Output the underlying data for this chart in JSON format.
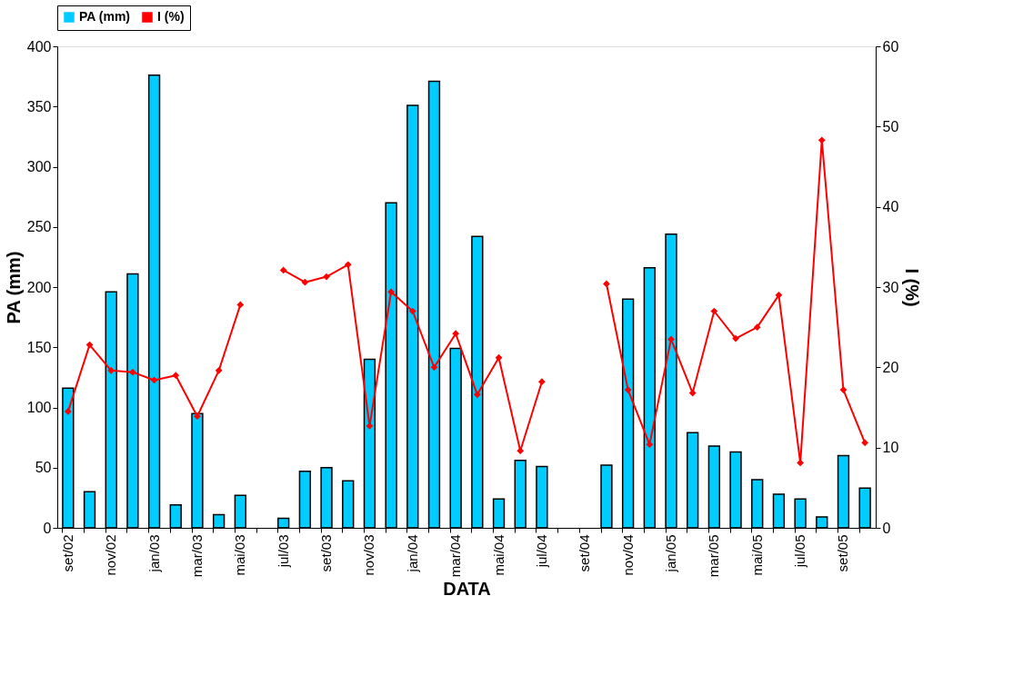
{
  "chart_data": {
    "type": "bar",
    "categories": [
      "set/02",
      null,
      "nov/02",
      null,
      "jan/03",
      null,
      "mar/03",
      null,
      "mai/03",
      null,
      "jul/03",
      null,
      "set/03",
      null,
      "nov/03",
      null,
      "jan/04",
      null,
      "mar/04",
      null,
      "mai/04",
      null,
      "jul/04",
      null,
      "set/04",
      null,
      "nov/04",
      null,
      "jan/05",
      null,
      "mar/05",
      null,
      "mai/05",
      null,
      "jul/05",
      null,
      "set/05",
      null
    ],
    "series": [
      {
        "name": "PA (mm)",
        "color": "#00ccff",
        "values": [
          116,
          30,
          196,
          211,
          376,
          19,
          95,
          11,
          27,
          null,
          8,
          47,
          50,
          39,
          140,
          270,
          351,
          371,
          149,
          242,
          24,
          56,
          51,
          null,
          null,
          52,
          190,
          216,
          244,
          79,
          68,
          63,
          40,
          28,
          24,
          9,
          60,
          33
        ]
      },
      {
        "name": "I (%)",
        "type": "line",
        "axis": "y2",
        "marker": "diamond",
        "color": "#ff0000",
        "values": [
          14.5,
          22.8,
          19.6,
          19.4,
          18.4,
          19.0,
          13.9,
          19.6,
          27.8,
          null,
          32.1,
          30.6,
          31.3,
          32.8,
          12.7,
          29.4,
          27.0,
          20.0,
          24.2,
          16.6,
          21.2,
          9.6,
          18.2,
          null,
          null,
          30.4,
          17.2,
          10.4,
          23.5,
          16.8,
          27.0,
          23.6,
          25.0,
          29.0,
          8.1,
          48.3,
          17.2,
          10.6
        ]
      }
    ],
    "xlabel": "DATA",
    "ylabel": "PA (mm)",
    "y2label": "I (%)",
    "ylim": [
      0,
      400
    ],
    "yticks": [
      0,
      50,
      100,
      150,
      200,
      250,
      300,
      350,
      400
    ],
    "y2lim": [
      0,
      60
    ],
    "y2ticks": [
      0,
      10,
      20,
      30,
      40,
      50,
      60
    ],
    "legend": "top",
    "grid": false
  }
}
